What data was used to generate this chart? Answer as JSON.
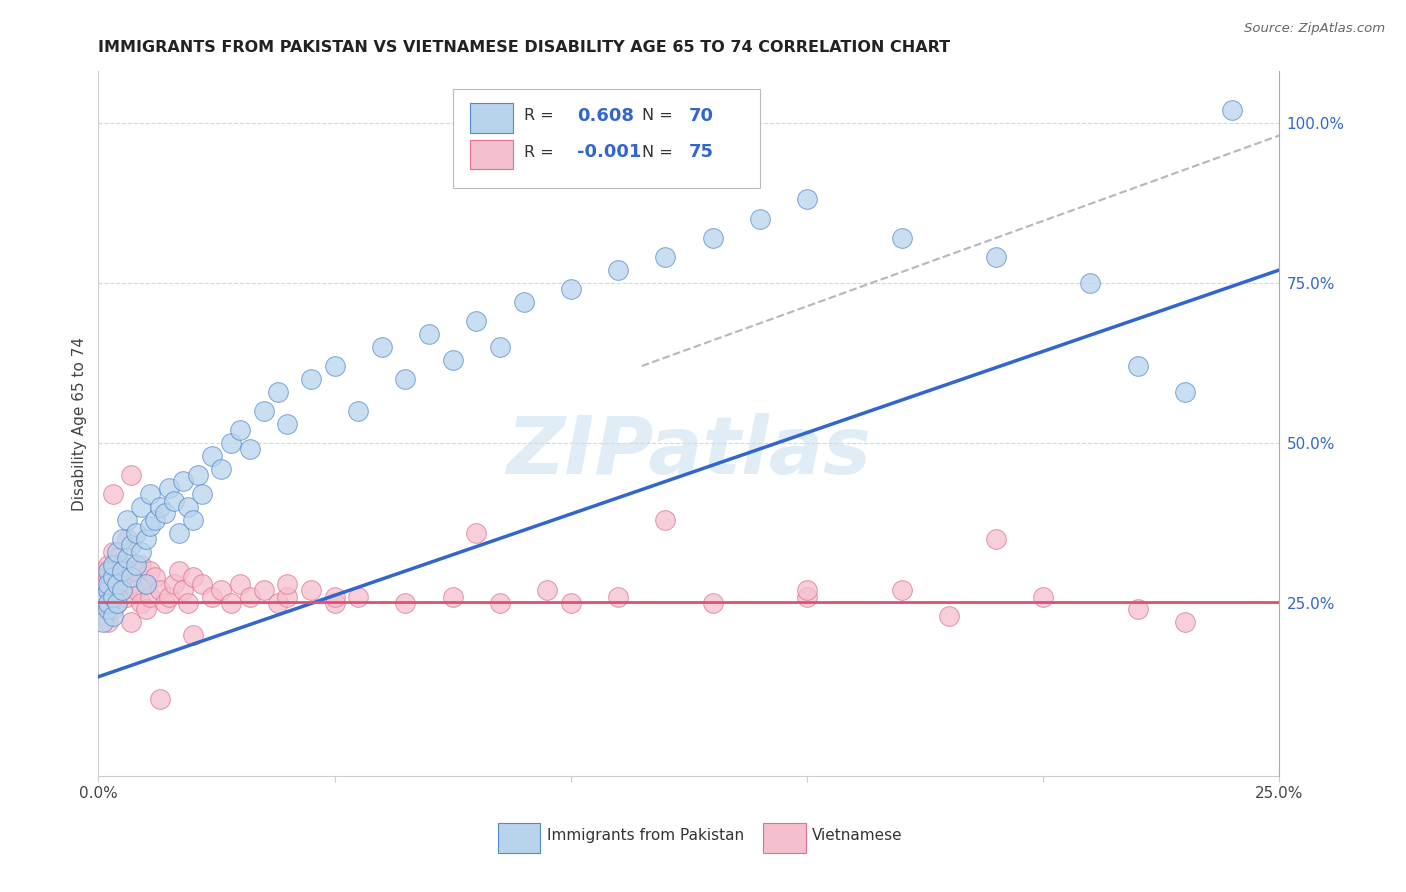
{
  "title": "IMMIGRANTS FROM PAKISTAN VS VIETNAMESE DISABILITY AGE 65 TO 74 CORRELATION CHART",
  "source": "Source: ZipAtlas.com",
  "ylabel": "Disability Age 65 to 74",
  "right_yticks": [
    "100.0%",
    "75.0%",
    "50.0%",
    "25.0%"
  ],
  "right_ytick_vals": [
    1.0,
    0.75,
    0.5,
    0.25
  ],
  "xlim": [
    0.0,
    0.25
  ],
  "ylim": [
    -0.02,
    1.08
  ],
  "pakistan_color": "#b8d4ec",
  "pakistan_edge": "#5588cc",
  "vietnam_color": "#f5c0ce",
  "vietnam_edge": "#e07090",
  "regression_line_color_pakistan": "#3366cc",
  "regression_line_color_vietnam": "#e05070",
  "dashed_line_color": "#b0b8c0",
  "watermark": "ZIPatlas",
  "watermark_color": "#cce0f0",
  "R_pakistan": 0.608,
  "N_pakistan": 70,
  "R_vietnam": -0.001,
  "N_vietnam": 75,
  "pk_line_x0": 0.0,
  "pk_line_y0": 0.135,
  "pk_line_x1": 0.25,
  "pk_line_y1": 0.77,
  "vn_line_x0": 0.0,
  "vn_line_y0": 0.252,
  "vn_line_x1": 0.25,
  "vn_line_y1": 0.252,
  "dash_line_x0": 0.115,
  "dash_line_y0": 0.62,
  "dash_line_x1": 0.25,
  "dash_line_y1": 0.98,
  "pakistan_x": [
    0.001,
    0.001,
    0.002,
    0.002,
    0.002,
    0.002,
    0.002,
    0.003,
    0.003,
    0.003,
    0.003,
    0.004,
    0.004,
    0.004,
    0.005,
    0.005,
    0.005,
    0.006,
    0.006,
    0.007,
    0.007,
    0.008,
    0.008,
    0.009,
    0.009,
    0.01,
    0.01,
    0.011,
    0.011,
    0.012,
    0.013,
    0.014,
    0.015,
    0.016,
    0.017,
    0.018,
    0.019,
    0.02,
    0.021,
    0.022,
    0.024,
    0.026,
    0.028,
    0.03,
    0.032,
    0.035,
    0.038,
    0.04,
    0.045,
    0.05,
    0.055,
    0.06,
    0.065,
    0.07,
    0.075,
    0.08,
    0.085,
    0.09,
    0.1,
    0.11,
    0.12,
    0.13,
    0.14,
    0.15,
    0.17,
    0.19,
    0.21,
    0.22,
    0.23,
    0.24
  ],
  "pakistan_y": [
    0.22,
    0.26,
    0.24,
    0.27,
    0.3,
    0.25,
    0.28,
    0.23,
    0.29,
    0.31,
    0.26,
    0.28,
    0.33,
    0.25,
    0.3,
    0.35,
    0.27,
    0.32,
    0.38,
    0.34,
    0.29,
    0.36,
    0.31,
    0.33,
    0.4,
    0.35,
    0.28,
    0.37,
    0.42,
    0.38,
    0.4,
    0.39,
    0.43,
    0.41,
    0.36,
    0.44,
    0.4,
    0.38,
    0.45,
    0.42,
    0.48,
    0.46,
    0.5,
    0.52,
    0.49,
    0.55,
    0.58,
    0.53,
    0.6,
    0.62,
    0.55,
    0.65,
    0.6,
    0.67,
    0.63,
    0.69,
    0.65,
    0.72,
    0.74,
    0.77,
    0.79,
    0.82,
    0.85,
    0.88,
    0.82,
    0.79,
    0.75,
    0.62,
    0.58,
    1.02
  ],
  "vietnam_x": [
    0.001,
    0.001,
    0.001,
    0.002,
    0.002,
    0.002,
    0.002,
    0.002,
    0.003,
    0.003,
    0.003,
    0.003,
    0.004,
    0.004,
    0.004,
    0.005,
    0.005,
    0.005,
    0.006,
    0.006,
    0.006,
    0.007,
    0.007,
    0.008,
    0.008,
    0.009,
    0.009,
    0.01,
    0.01,
    0.011,
    0.011,
    0.012,
    0.013,
    0.014,
    0.015,
    0.016,
    0.017,
    0.018,
    0.019,
    0.02,
    0.022,
    0.024,
    0.026,
    0.028,
    0.03,
    0.032,
    0.035,
    0.038,
    0.04,
    0.045,
    0.05,
    0.055,
    0.065,
    0.075,
    0.085,
    0.095,
    0.11,
    0.13,
    0.15,
    0.17,
    0.05,
    0.1,
    0.15,
    0.18,
    0.2,
    0.22,
    0.23,
    0.08,
    0.12,
    0.19,
    0.003,
    0.007,
    0.013,
    0.02,
    0.04
  ],
  "vietnam_y": [
    0.28,
    0.24,
    0.3,
    0.27,
    0.25,
    0.31,
    0.22,
    0.29,
    0.26,
    0.3,
    0.33,
    0.24,
    0.28,
    0.32,
    0.25,
    0.29,
    0.27,
    0.31,
    0.3,
    0.26,
    0.35,
    0.28,
    0.22,
    0.3,
    0.27,
    0.25,
    0.31,
    0.28,
    0.24,
    0.3,
    0.26,
    0.29,
    0.27,
    0.25,
    0.26,
    0.28,
    0.3,
    0.27,
    0.25,
    0.29,
    0.28,
    0.26,
    0.27,
    0.25,
    0.28,
    0.26,
    0.27,
    0.25,
    0.26,
    0.27,
    0.25,
    0.26,
    0.25,
    0.26,
    0.25,
    0.27,
    0.26,
    0.25,
    0.26,
    0.27,
    0.26,
    0.25,
    0.27,
    0.23,
    0.26,
    0.24,
    0.22,
    0.36,
    0.38,
    0.35,
    0.42,
    0.45,
    0.1,
    0.2,
    0.28
  ]
}
